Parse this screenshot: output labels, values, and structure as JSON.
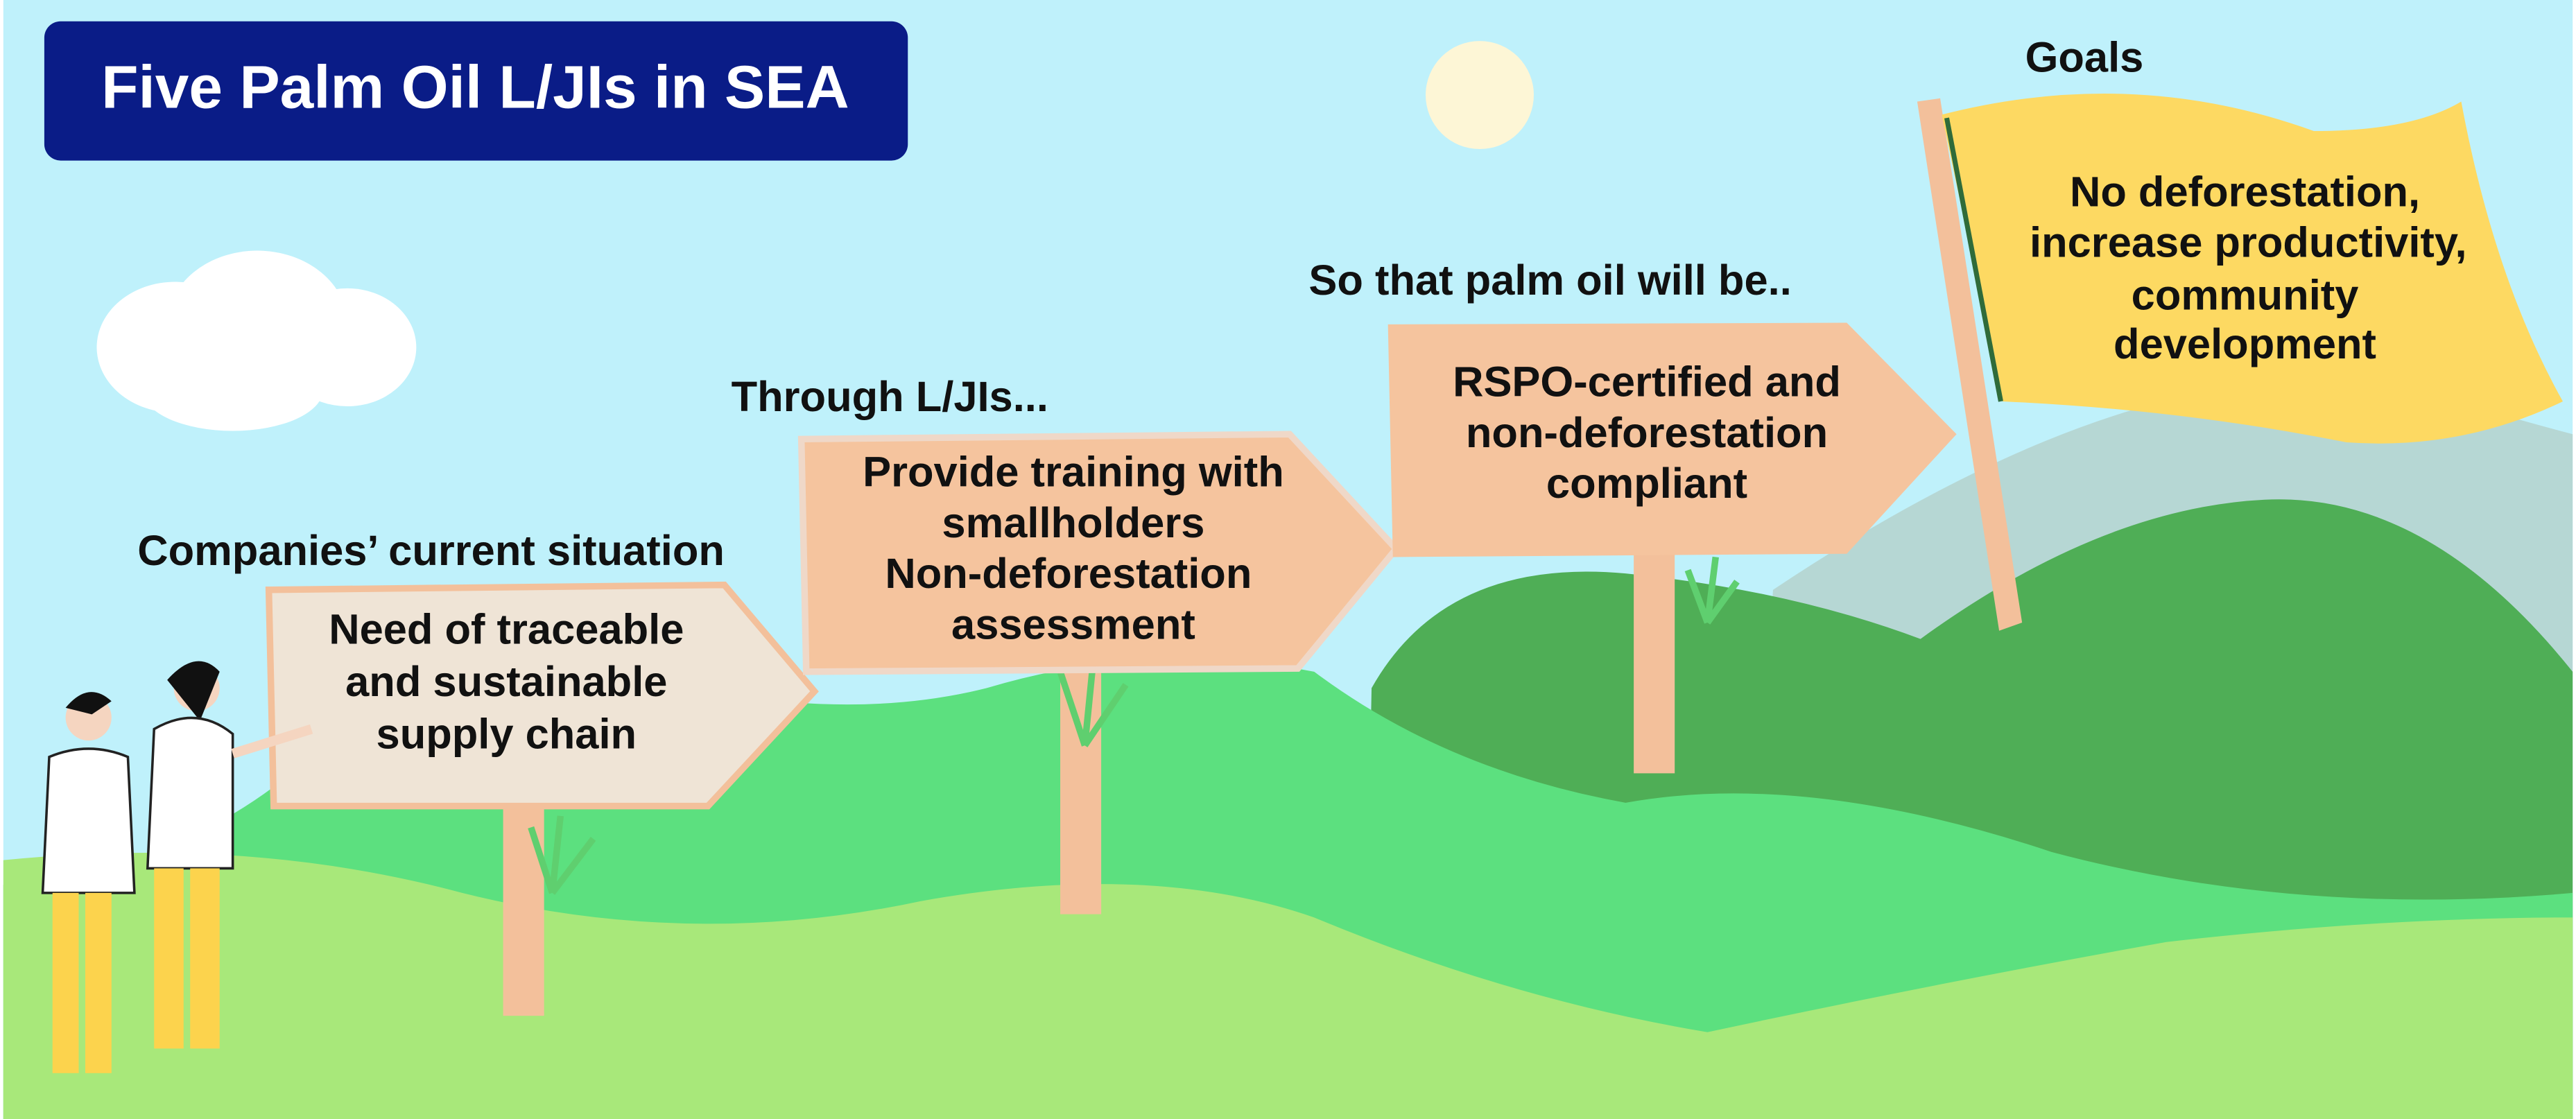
{
  "title": "Five Palm Oil L/JIs in SEA",
  "stages": [
    {
      "heading": "Companies’ current situation",
      "text": [
        "Need of traceable",
        "and sustainable",
        "supply chain"
      ]
    },
    {
      "heading": "Through L/JIs...",
      "text": [
        "Provide training with",
        "smallholders",
        "Non-deforestation",
        "assessment"
      ]
    },
    {
      "heading": "So that palm oil will be..",
      "text": [
        "RSPO-certified and",
        "non-deforestation",
        "compliant"
      ]
    }
  ],
  "goal": {
    "heading": "Goals",
    "text": [
      "No deforestation,",
      "increase productivity,",
      "community",
      "development"
    ]
  }
}
